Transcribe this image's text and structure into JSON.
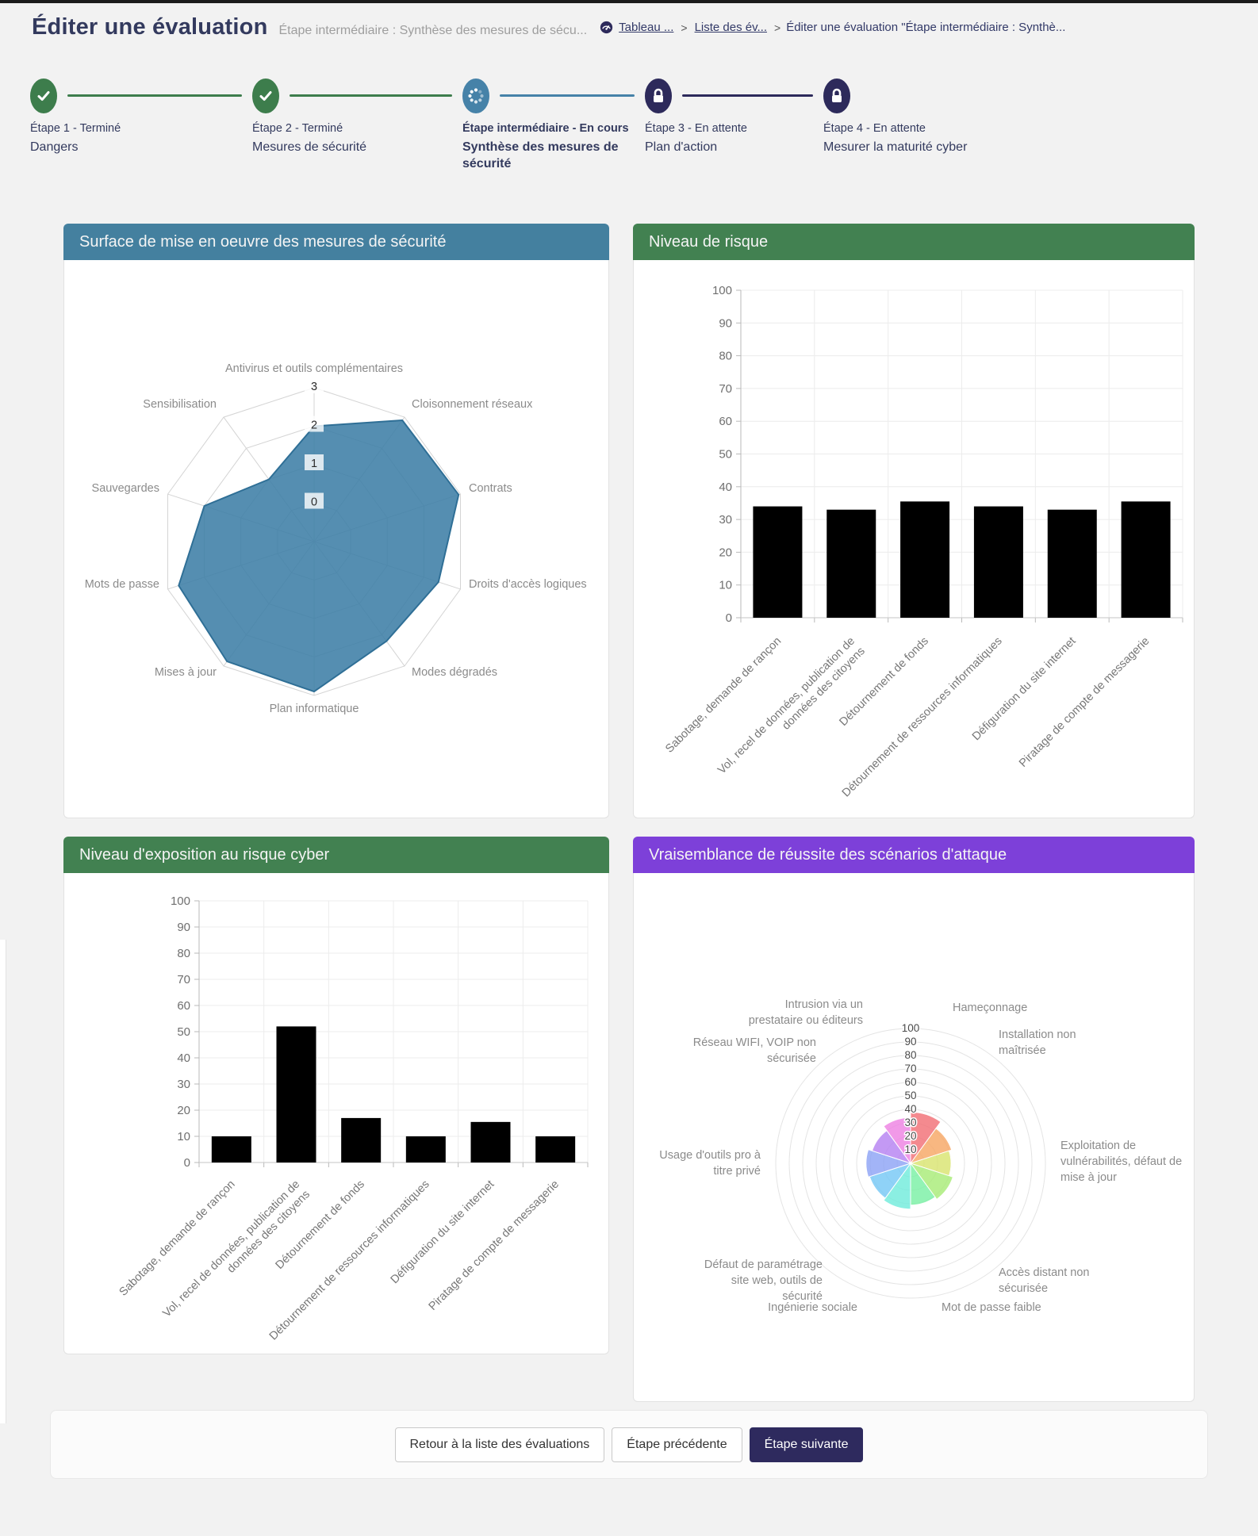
{
  "page": {
    "title": "Éditer une évaluation",
    "subtitle": "Étape intermédiaire : Synthèse des mesures de sécu..."
  },
  "breadcrumb": {
    "items": [
      {
        "label": "Tableau ..."
      },
      {
        "label": "Liste des év..."
      },
      {
        "label": "Éditer une évaluation \"Étape intermédiaire : Synthè..."
      }
    ]
  },
  "steps": [
    {
      "label": "Étape 1 - Terminé",
      "sublabel": "Dangers",
      "status": "done"
    },
    {
      "label": "Étape 2 - Terminé",
      "sublabel": "Mesures de sécurité",
      "status": "done"
    },
    {
      "label": "Étape intermédiaire - En cours",
      "sublabel": "Synthèse des mesures de sécurité",
      "status": "current"
    },
    {
      "label": "Étape 3 - En attente",
      "sublabel": "Plan d'action",
      "status": "locked"
    },
    {
      "label": "Étape 4 - En attente",
      "sublabel": "Mesurer la maturité cyber",
      "status": "locked"
    }
  ],
  "cards": [
    {
      "title": "Surface de mise en oeuvre des mesures de sécurité",
      "header_color": "#44809f"
    },
    {
      "title": "Niveau de risque",
      "header_color": "#428151"
    },
    {
      "title": "Niveau d'exposition au risque cyber",
      "header_color": "#428151"
    },
    {
      "title": "Vraisemblance de réussite des scénarios d'attaque",
      "header_color": "#7d40d9"
    }
  ],
  "chart_data": [
    {
      "type": "radar",
      "title": "Surface de mise en oeuvre des mesures de sécurité",
      "labels": [
        "Antivirus et outils complémentaires",
        "Cloisonnement réseaux",
        "Contrats",
        "Droits d'accès logiques",
        "Modes dégradés",
        "Plan informatique",
        "Mises à jour",
        "Mots de passe",
        "Sauvegardes",
        "Sensibilisation"
      ],
      "values": [
        2,
        2.9,
        2.95,
        2.4,
        2.2,
        2.9,
        2.85,
        2.7,
        2,
        1
      ],
      "ylim": [
        0,
        3
      ],
      "ticks": [
        0,
        1,
        2,
        3
      ],
      "fill_color": "#3d7ea6",
      "grid": true,
      "legend": "none"
    },
    {
      "type": "bar",
      "title": "Niveau de risque",
      "categories": [
        "Sabotage, demande de rançon",
        "Vol, recel de données, publication de données des citoyens",
        "Détournement de fonds",
        "Détournement de ressources informatiques",
        "Défiguration du site internet",
        "Piratage de compte de messagerie"
      ],
      "category_lines": [
        [
          "Sabotage, demande de rançon"
        ],
        [
          "Vol, recel de données, publication de",
          "données des citoyens"
        ],
        [
          "Détournement de fonds"
        ],
        [
          "Détournement de ressources informatiques"
        ],
        [
          "Défiguration du site internet"
        ],
        [
          "Piratage de compte de messagerie"
        ]
      ],
      "values": [
        34,
        33,
        35.5,
        34,
        33,
        35.5
      ],
      "ylim": [
        0,
        100
      ],
      "ytick_step": 10,
      "bar_color": "#000000",
      "grid": true,
      "legend": "none"
    },
    {
      "type": "bar",
      "title": "Niveau d'exposition au risque cyber",
      "categories": [
        "Sabotage, demande de rançon",
        "Vol, recel de données, publication de données des citoyens",
        "Détournement de fonds",
        "Détournement de ressources informatiques",
        "Défiguration du site internet",
        "Piratage de compte de messagerie"
      ],
      "category_lines": [
        [
          "Sabotage, demande de rançon"
        ],
        [
          "Vol, recel de données, publication de",
          "données des citoyens"
        ],
        [
          "Détournement de fonds"
        ],
        [
          "Détournement de ressources informatiques"
        ],
        [
          "Défiguration du site internet"
        ],
        [
          "Piratage de compte de messagerie"
        ]
      ],
      "values": [
        10,
        52,
        17,
        10,
        15.5,
        10
      ],
      "ylim": [
        0,
        100
      ],
      "ytick_step": 10,
      "bar_color": "#000000",
      "grid": true,
      "legend": "none"
    },
    {
      "type": "polarArea",
      "title": "Vraisemblance de réussite des scénarios d'attaque",
      "labels": [
        "Hameçonnage",
        "Installation non maîtrisée",
        "Exploitation de vulnérabilités, défaut de mise à jour",
        "Accès distant non sécurisée",
        "Mot de passe faible",
        "Ingénierie sociale",
        "Défaut de paramétrage site web, outils de sécurité",
        "Usage d'outils pro à titre privé",
        "Réseau WIFI, VOIP non sécurisée",
        "Intrusion via un prestataire ou éditeurs"
      ],
      "label_lines": [
        [
          "Hameçonnage"
        ],
        [
          "Installation non",
          "maîtrisée"
        ],
        [
          "Exploitation de",
          "vulnérabilités, défaut de",
          "mise à jour"
        ],
        [
          "Accès distant non",
          "sécurisée"
        ],
        [
          "Mot de passe faible"
        ],
        [
          "Ingénierie sociale"
        ],
        [
          "Défaut de paramétrage",
          "site web, outils de",
          "sécurité"
        ],
        [
          "Usage d'outils pro à",
          "titre privé"
        ],
        [
          "Réseau WIFI, VOIP non",
          "sécurisée"
        ],
        [
          "Intrusion via un",
          "prestataire ou éditeurs"
        ]
      ],
      "values": [
        38,
        32,
        30,
        33,
        31,
        34,
        32,
        33,
        30,
        34
      ],
      "colors": [
        "#f27076",
        "#f7a765",
        "#d9e470",
        "#a8ec77",
        "#7af0a5",
        "#72ecdc",
        "#76c8f5",
        "#8da4f5",
        "#b683f2",
        "#ee82e3"
      ],
      "ylim": [
        0,
        100
      ],
      "ytick_step": 10,
      "grid": true,
      "legend": "none"
    }
  ],
  "footer": {
    "buttons": [
      {
        "label": "Retour à la liste des évaluations",
        "variant": "outline"
      },
      {
        "label": "Étape précédente",
        "variant": "outline"
      },
      {
        "label": "Étape suivante",
        "variant": "solid"
      }
    ]
  }
}
